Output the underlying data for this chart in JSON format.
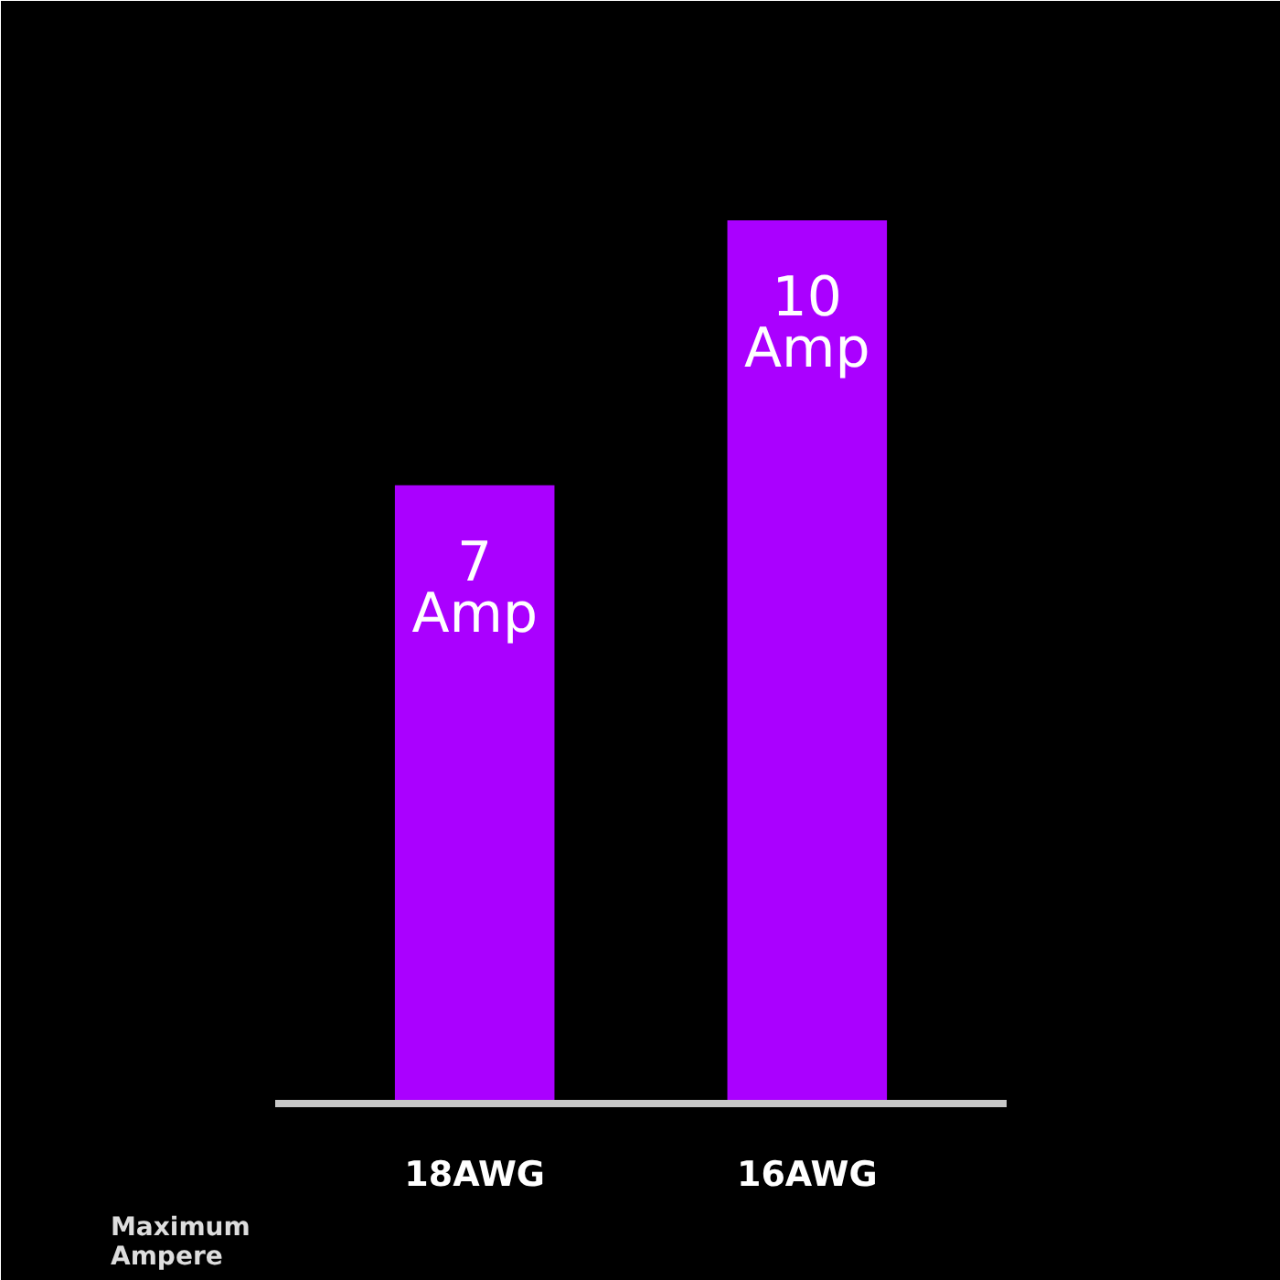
{
  "chart_data": {
    "type": "bar",
    "xlabel": "Maximum\nAmpere",
    "categories": [
      "18AWG",
      "16AWG"
    ],
    "values": [
      7,
      10
    ],
    "value_labels": [
      "7\nAmp",
      "10\nAmp"
    ],
    "color": "#aa00ff"
  }
}
